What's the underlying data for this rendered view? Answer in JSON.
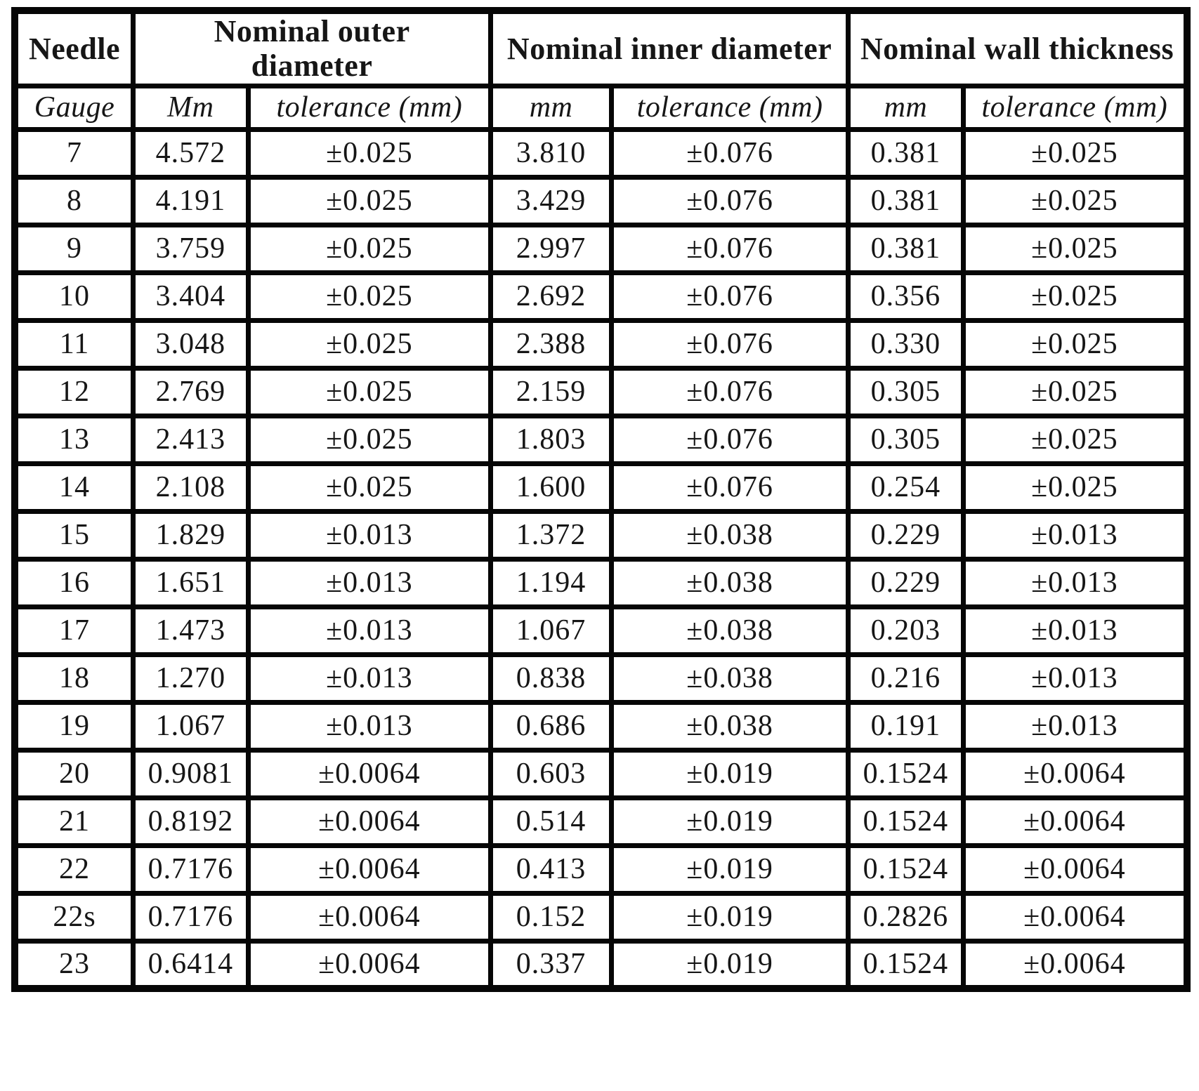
{
  "colors": {
    "ink": "#161616",
    "border": "#060606",
    "paper": "#ffffff"
  },
  "table": {
    "col_keys": [
      "gauge",
      "outer_mm",
      "outer_tolerance",
      "inner_mm",
      "inner_tolerance",
      "wall_mm",
      "wall_tolerance"
    ],
    "header_groups": {
      "needle": "Needle",
      "outer": "Nominal outer\ndiameter",
      "inner": "Nominal inner diameter",
      "wall": "Nominal wall thickness"
    },
    "sub_headers": {
      "gauge": "Gauge",
      "outer_mm": "Mm",
      "outer_tolerance": "tolerance (mm)",
      "inner_mm": "mm",
      "inner_tolerance": "tolerance (mm)",
      "wall_mm": "mm",
      "wall_tolerance": "tolerance (mm)"
    },
    "rows": [
      [
        "7",
        "4.572",
        "±0.025",
        "3.810",
        "±0.076",
        "0.381",
        "±0.025"
      ],
      [
        "8",
        "4.191",
        "±0.025",
        "3.429",
        "±0.076",
        "0.381",
        "±0.025"
      ],
      [
        "9",
        "3.759",
        "±0.025",
        "2.997",
        "±0.076",
        "0.381",
        "±0.025"
      ],
      [
        "10",
        "3.404",
        "±0.025",
        "2.692",
        "±0.076",
        "0.356",
        "±0.025"
      ],
      [
        "11",
        "3.048",
        "±0.025",
        "2.388",
        "±0.076",
        "0.330",
        "±0.025"
      ],
      [
        "12",
        "2.769",
        "±0.025",
        "2.159",
        "±0.076",
        "0.305",
        "±0.025"
      ],
      [
        "13",
        "2.413",
        "±0.025",
        "1.803",
        "±0.076",
        "0.305",
        "±0.025"
      ],
      [
        "14",
        "2.108",
        "±0.025",
        "1.600",
        "±0.076",
        "0.254",
        "±0.025"
      ],
      [
        "15",
        "1.829",
        "±0.013",
        "1.372",
        "±0.038",
        "0.229",
        "±0.013"
      ],
      [
        "16",
        "1.651",
        "±0.013",
        "1.194",
        "±0.038",
        "0.229",
        "±0.013"
      ],
      [
        "17",
        "1.473",
        "±0.013",
        "1.067",
        "±0.038",
        "0.203",
        "±0.013"
      ],
      [
        "18",
        "1.270",
        "±0.013",
        "0.838",
        "±0.038",
        "0.216",
        "±0.013"
      ],
      [
        "19",
        "1.067",
        "±0.013",
        "0.686",
        "±0.038",
        "0.191",
        "±0.013"
      ],
      [
        "20",
        "0.9081",
        "±0.0064",
        "0.603",
        "±0.019",
        "0.1524",
        "±0.0064"
      ],
      [
        "21",
        "0.8192",
        "±0.0064",
        "0.514",
        "±0.019",
        "0.1524",
        "±0.0064"
      ],
      [
        "22",
        "0.7176",
        "±0.0064",
        "0.413",
        "±0.019",
        "0.1524",
        "±0.0064"
      ],
      [
        "22s",
        "0.7176",
        "±0.0064",
        "0.152",
        "±0.019",
        "0.2826",
        "±0.0064"
      ],
      [
        "23",
        "0.6414",
        "±0.0064",
        "0.337",
        "±0.019",
        "0.1524",
        "±0.0064"
      ]
    ]
  }
}
